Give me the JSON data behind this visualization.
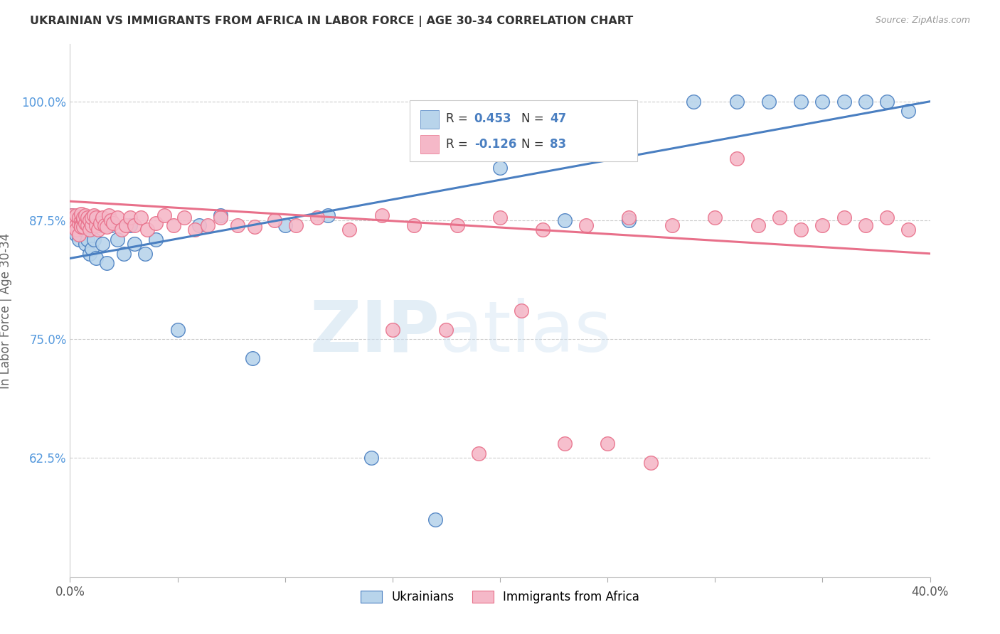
{
  "title": "UKRAINIAN VS IMMIGRANTS FROM AFRICA IN LABOR FORCE | AGE 30-34 CORRELATION CHART",
  "source": "Source: ZipAtlas.com",
  "ylabel": "In Labor Force | Age 30-34",
  "yticks": [
    0.625,
    0.75,
    0.875,
    1.0
  ],
  "ytick_labels": [
    "62.5%",
    "75.0%",
    "87.5%",
    "100.0%"
  ],
  "xmin": 0.0,
  "xmax": 0.4,
  "ymin": 0.5,
  "ymax": 1.06,
  "legend_r1": "R = 0.453",
  "legend_n1": "N = 47",
  "legend_r2": "R = -0.126",
  "legend_n2": "N = 83",
  "color_ukrainian": "#b8d4eb",
  "color_africa": "#f5b8c8",
  "color_line_ukrainian": "#4a7fc1",
  "color_line_africa": "#e8708a",
  "color_ytick_labels": "#5599dd",
  "ukrainians_x": [
    0.001,
    0.001,
    0.002,
    0.002,
    0.003,
    0.003,
    0.004,
    0.004,
    0.005,
    0.005,
    0.006,
    0.007,
    0.008,
    0.009,
    0.01,
    0.011,
    0.012,
    0.014,
    0.015,
    0.017,
    0.019,
    0.022,
    0.025,
    0.028,
    0.03,
    0.035,
    0.04,
    0.05,
    0.06,
    0.07,
    0.085,
    0.1,
    0.12,
    0.14,
    0.17,
    0.2,
    0.23,
    0.26,
    0.29,
    0.31,
    0.325,
    0.34,
    0.35,
    0.36,
    0.37,
    0.38,
    0.39
  ],
  "ukrainians_y": [
    0.88,
    0.875,
    0.87,
    0.865,
    0.878,
    0.86,
    0.855,
    0.868,
    0.875,
    0.87,
    0.865,
    0.85,
    0.855,
    0.84,
    0.845,
    0.855,
    0.835,
    0.87,
    0.85,
    0.83,
    0.87,
    0.855,
    0.84,
    0.87,
    0.85,
    0.84,
    0.855,
    0.76,
    0.87,
    0.88,
    0.73,
    0.87,
    0.88,
    0.625,
    0.56,
    0.93,
    0.875,
    0.875,
    1.0,
    1.0,
    1.0,
    1.0,
    1.0,
    1.0,
    1.0,
    1.0,
    0.99
  ],
  "africa_x": [
    0.001,
    0.001,
    0.001,
    0.002,
    0.002,
    0.002,
    0.003,
    0.003,
    0.003,
    0.004,
    0.004,
    0.004,
    0.005,
    0.005,
    0.005,
    0.005,
    0.006,
    0.006,
    0.006,
    0.007,
    0.007,
    0.008,
    0.008,
    0.009,
    0.009,
    0.01,
    0.01,
    0.011,
    0.012,
    0.012,
    0.013,
    0.014,
    0.015,
    0.016,
    0.017,
    0.018,
    0.019,
    0.02,
    0.022,
    0.024,
    0.026,
    0.028,
    0.03,
    0.033,
    0.036,
    0.04,
    0.044,
    0.048,
    0.053,
    0.058,
    0.064,
    0.07,
    0.078,
    0.086,
    0.095,
    0.105,
    0.115,
    0.13,
    0.145,
    0.16,
    0.18,
    0.2,
    0.22,
    0.24,
    0.26,
    0.28,
    0.3,
    0.31,
    0.32,
    0.33,
    0.34,
    0.35,
    0.36,
    0.37,
    0.38,
    0.39,
    0.15,
    0.175,
    0.19,
    0.21,
    0.23,
    0.25,
    0.27
  ],
  "africa_y": [
    0.88,
    0.875,
    0.87,
    0.875,
    0.868,
    0.878,
    0.87,
    0.88,
    0.865,
    0.872,
    0.878,
    0.86,
    0.875,
    0.87,
    0.868,
    0.882,
    0.875,
    0.868,
    0.878,
    0.872,
    0.88,
    0.87,
    0.878,
    0.865,
    0.875,
    0.87,
    0.878,
    0.88,
    0.87,
    0.878,
    0.865,
    0.872,
    0.878,
    0.87,
    0.868,
    0.88,
    0.875,
    0.872,
    0.878,
    0.865,
    0.87,
    0.878,
    0.87,
    0.878,
    0.865,
    0.872,
    0.88,
    0.87,
    0.878,
    0.865,
    0.87,
    0.878,
    0.87,
    0.868,
    0.875,
    0.87,
    0.878,
    0.865,
    0.88,
    0.87,
    0.87,
    0.878,
    0.865,
    0.87,
    0.878,
    0.87,
    0.878,
    0.94,
    0.87,
    0.878,
    0.865,
    0.87,
    0.878,
    0.87,
    0.878,
    0.865,
    0.76,
    0.76,
    0.63,
    0.78,
    0.64,
    0.64,
    0.62
  ],
  "blue_line_x": [
    0.0,
    0.4
  ],
  "blue_line_y": [
    0.835,
    1.0
  ],
  "pink_line_x": [
    0.0,
    0.4
  ],
  "pink_line_y": [
    0.895,
    0.84
  ]
}
